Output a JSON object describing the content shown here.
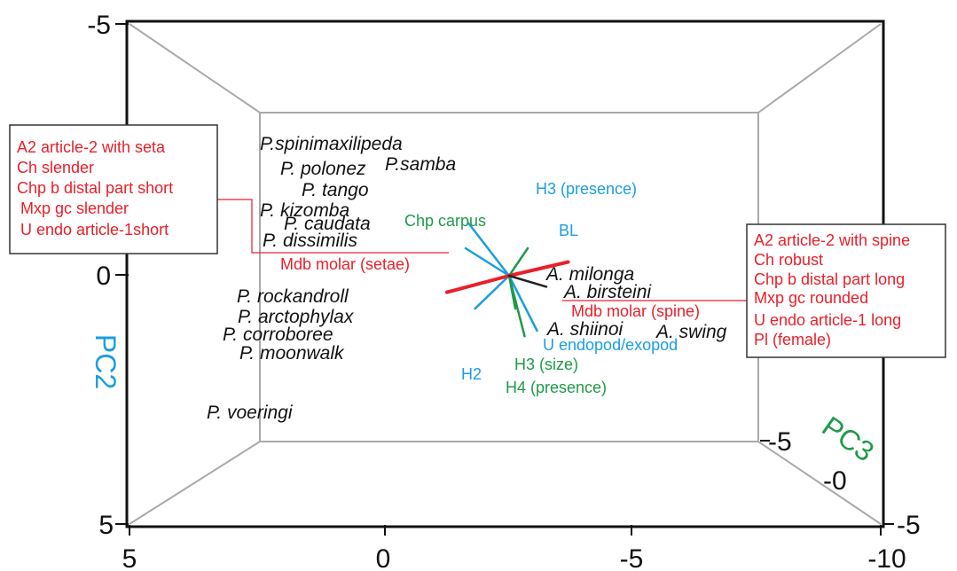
{
  "chart_data": {
    "type": "scatter",
    "title": "",
    "axes": {
      "PC1": {
        "label": "",
        "ticks": [
          "5",
          "0",
          "-5",
          "-10"
        ],
        "range": [
          5,
          -10
        ]
      },
      "PC2": {
        "label": "PC2",
        "ticks": [
          "5",
          "0",
          "-5"
        ],
        "range": [
          -5,
          5
        ]
      },
      "PC3": {
        "label": "PC3",
        "ticks": [
          "-5",
          "-0",
          "-5"
        ],
        "range": [
          -5,
          5
        ]
      }
    },
    "points": [
      {
        "name": "P.spinimaxilipeda",
        "pc1": 0.5,
        "pc2": 2.7
      },
      {
        "name": "P.samba",
        "pc1": -1.4,
        "pc2": 2.3
      },
      {
        "name": "P. polonez",
        "pc1": -0.2,
        "pc2": 2.3
      },
      {
        "name": "P. tango",
        "pc1": -0.3,
        "pc2": 1.8
      },
      {
        "name": "P. kizomba",
        "pc1": 0.5,
        "pc2": 1.4
      },
      {
        "name": "P. caudata",
        "pc1": 0.4,
        "pc2": 1.1
      },
      {
        "name": "P. dissimilis",
        "pc1": 0.5,
        "pc2": 0.8
      },
      {
        "name": "P. rockandroll",
        "pc1": 1.0,
        "pc2": -0.5
      },
      {
        "name": "P. arctophylax",
        "pc1": 1.0,
        "pc2": -0.9
      },
      {
        "name": "P. corroboree",
        "pc1": 1.3,
        "pc2": -1.2
      },
      {
        "name": "P. moonwalk",
        "pc1": 1.0,
        "pc2": -1.6
      },
      {
        "name": "P. voeringi",
        "pc1": 1.3,
        "pc2": -3.1
      },
      {
        "name": "A. milonga",
        "pc1": -5.4,
        "pc2": 0.0
      },
      {
        "name": "A. birsteini",
        "pc1": -5.8,
        "pc2": -0.3
      },
      {
        "name": "A. shiinoi",
        "pc1": -5.0,
        "pc2": -1.1
      },
      {
        "name": "A. swing",
        "pc1": -7.2,
        "pc2": -1.2
      }
    ],
    "vectors": [
      {
        "label": "H3 (presence)",
        "color": "#1a9ee0",
        "dx": -1.3,
        "dy": 1.9
      },
      {
        "label": "BL",
        "color": "#1a9ee0",
        "dx": -1.4,
        "dy": 1.0
      },
      {
        "label": "Chp carpus",
        "color": "#1e9a48",
        "dx": 0.6,
        "dy": 1.0
      },
      {
        "label": "U endopod/exopod",
        "color": "#1a9ee0",
        "dx": -1.1,
        "dy": -1.2
      },
      {
        "label": "H2",
        "color": "#1a9ee0",
        "dx": 0.9,
        "dy": -2.0
      },
      {
        "label": "H3 (size)",
        "color": "#1e9a48",
        "dx": 0.5,
        "dy": -2.2
      },
      {
        "label": "H4 (presence)",
        "color": "#1e9a48",
        "dx": 0.2,
        "dy": -1.2
      },
      {
        "label": "Mdb molar (setae)",
        "color": "#e8202a",
        "dx": 1.9,
        "dy": 0.5
      },
      {
        "label": "Mdb molar (spine)",
        "color": "#e8202a",
        "dx": -2.0,
        "dy": -0.6
      },
      {
        "label": "",
        "color": "#222222",
        "dx": 1.2,
        "dy": -0.4
      }
    ],
    "legend_boxes": [
      {
        "position": "left",
        "color": "#e8202a",
        "lines": [
          "A2 article-2 with seta",
          "Ch slender",
          "Chp b distal part short",
          "Mxp gc slender",
          "U endo article-1short"
        ]
      },
      {
        "position": "right",
        "color": "#e8202a",
        "lines": [
          "A2 article-2 with spine",
          "Ch robust",
          "Chp b distal part long",
          "Mxp gc rounded",
          "U endo article-1 long",
          "Pl (female)"
        ]
      }
    ],
    "colors": {
      "PC2": "#1a9ee0",
      "PC3": "#1e9a48",
      "variables": "#e8202a",
      "box_frame": "#888888"
    }
  }
}
